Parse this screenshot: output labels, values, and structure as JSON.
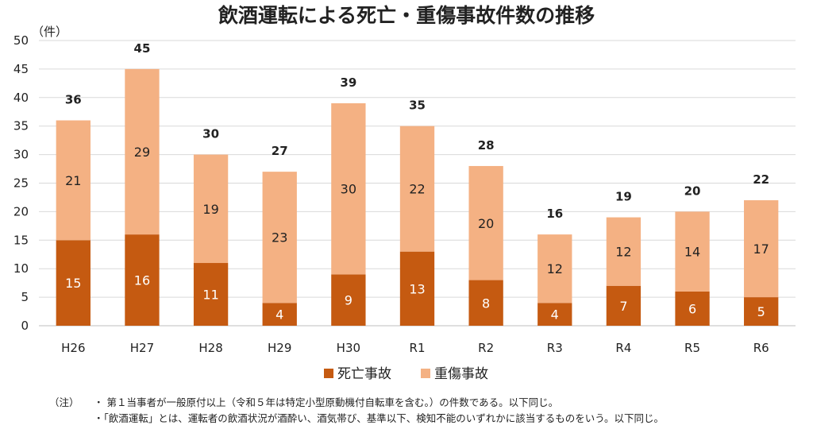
{
  "chart_data": {
    "type": "bar",
    "stacked": true,
    "title": "飲酒運転による死亡・重傷事故件数の推移",
    "ylabel": "（件）",
    "ylim": [
      0,
      50
    ],
    "yticks": [
      0,
      5,
      10,
      15,
      20,
      25,
      30,
      35,
      40,
      45,
      50
    ],
    "grid": true,
    "legend_position": "bottom",
    "categories": [
      "H26",
      "H27",
      "H28",
      "H29",
      "H30",
      "R1",
      "R2",
      "R3",
      "R4",
      "R5",
      "R6"
    ],
    "series": [
      {
        "name": "死亡事故",
        "color": "#C55A11",
        "values": [
          15,
          16,
          11,
          4,
          9,
          13,
          8,
          4,
          7,
          6,
          5
        ]
      },
      {
        "name": "重傷事故",
        "color": "#F4B183",
        "values": [
          21,
          29,
          19,
          23,
          30,
          22,
          20,
          12,
          12,
          14,
          17
        ]
      }
    ],
    "totals": [
      36,
      45,
      30,
      27,
      39,
      35,
      28,
      16,
      19,
      20,
      22
    ]
  },
  "notes": {
    "prefix": "（注）",
    "lines": [
      "・ 第１当事者が一般原付以上（令和５年は特定小型原動機付自転車を含む。）の件数である。以下同じ。",
      "・「飲酒運転」とは、運転者の飲酒状況が酒酔い、酒気帯び、基準以下、検知不能のいずれかに該当するものをいう。以下同じ。"
    ]
  }
}
